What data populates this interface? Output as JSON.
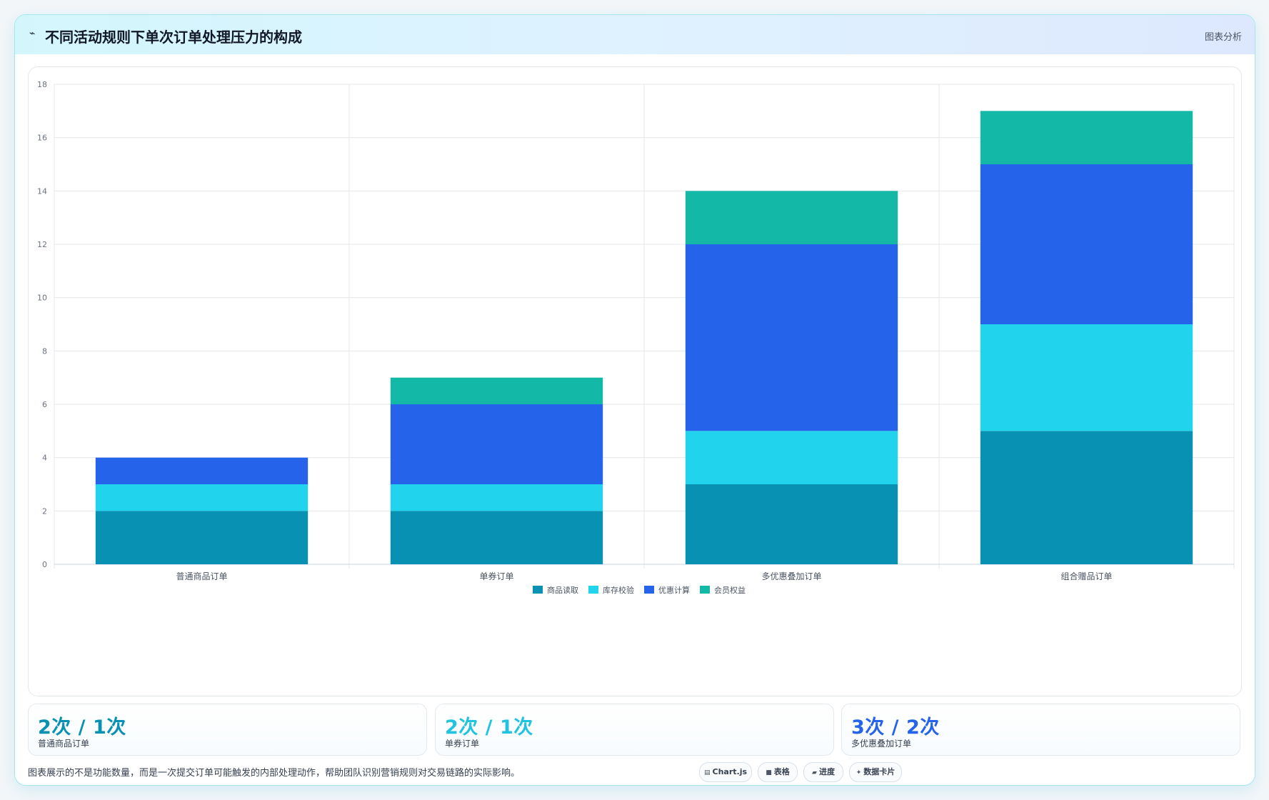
{
  "header": {
    "title": "不同活动规则下单次订单处理压力的构成",
    "tag": "图表分析"
  },
  "chart_data": {
    "type": "bar",
    "stacked": true,
    "title": "",
    "xlabel": "",
    "ylabel": "",
    "categories": [
      "普通商品订单",
      "单券订单",
      "多优惠叠加订单",
      "组合赠品订单"
    ],
    "series": [
      {
        "name": "商品读取",
        "color": "#0891b2",
        "values": [
          2,
          2,
          3,
          5
        ]
      },
      {
        "name": "库存校验",
        "color": "#22d3ee",
        "values": [
          1,
          1,
          2,
          4
        ]
      },
      {
        "name": "优惠计算",
        "color": "#2563eb",
        "values": [
          1,
          3,
          7,
          6
        ]
      },
      {
        "name": "会员权益",
        "color": "#14b8a6",
        "values": [
          0,
          1,
          2,
          2
        ]
      }
    ],
    "ylim": [
      0,
      18
    ],
    "yticks": [
      "0",
      "2",
      "4",
      "6",
      "8",
      "10",
      "12",
      "14",
      "16",
      "18"
    ],
    "grid": true,
    "legend": "bottom"
  },
  "stats": [
    {
      "value": "2次 / 1次",
      "label": "普通商品订单",
      "color": "#0891b2"
    },
    {
      "value": "2次 / 1次",
      "label": "单券订单",
      "color": "#22c3e0"
    },
    {
      "value": "3次 / 2次",
      "label": "多优惠叠加订单",
      "color": "#2563eb"
    }
  ],
  "footer": {
    "note": "图表展示的不是功能数量，而是一次提交订单可能触发的内部处理动作，帮助团队识别营销规则对交易链路的实际影响。",
    "chips": [
      {
        "icon": "chart-icon",
        "glyph": "▤",
        "label": "Chart.js"
      },
      {
        "icon": "table-icon",
        "glyph": "■",
        "label": "表格"
      },
      {
        "icon": "progress-icon",
        "glyph": "▰",
        "label": "进度"
      },
      {
        "icon": "data-card-icon",
        "glyph": "✦",
        "label": "数据卡片"
      }
    ]
  }
}
